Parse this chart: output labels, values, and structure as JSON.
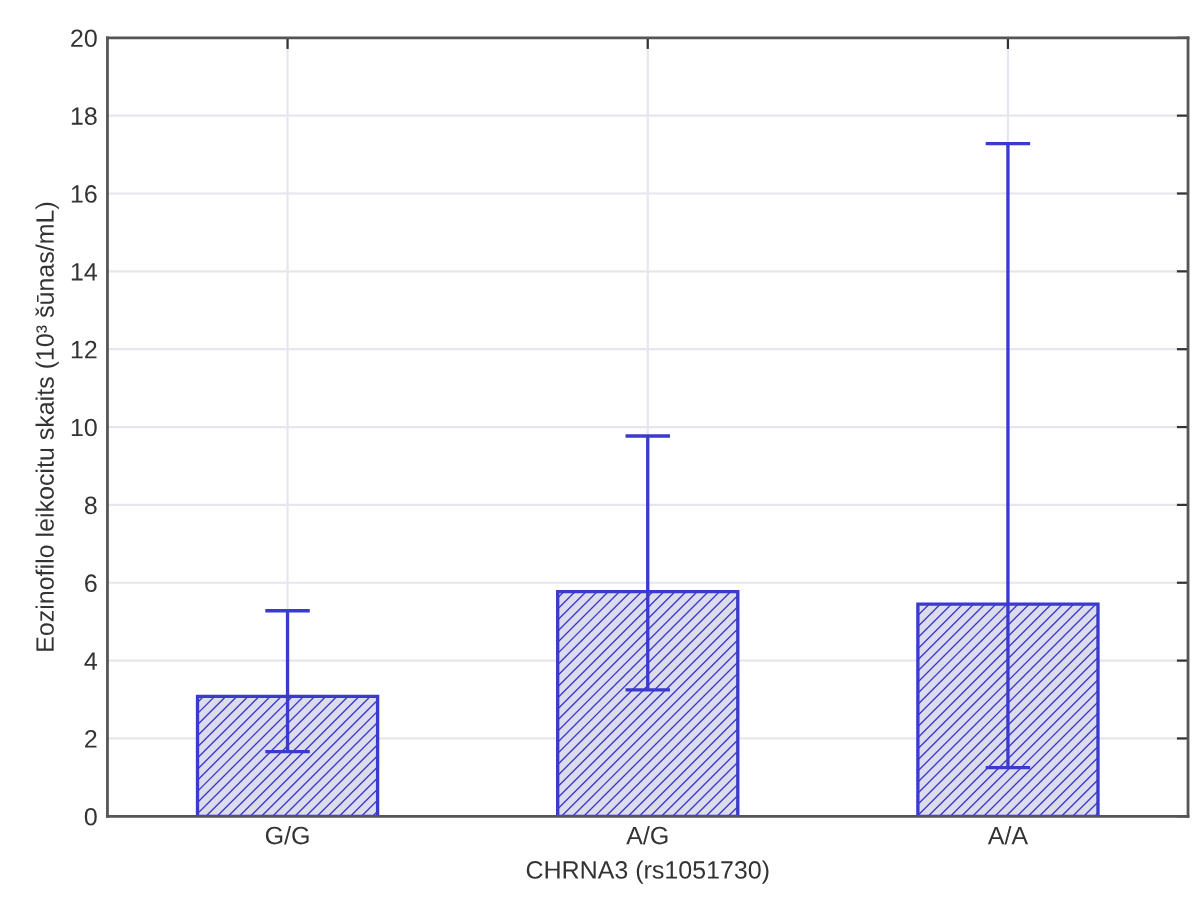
{
  "chart_data": {
    "type": "bar",
    "xlabel": "CHRNA3 (rs1051730)",
    "ylabel": "Eozinofilo leikocitu skaits (10³ šūnas/mL)",
    "categories": [
      "G/G",
      "A/G",
      "A/A"
    ],
    "values": [
      3.08,
      5.77,
      5.45
    ],
    "errors": [
      [
        1.66,
        5.28
      ],
      [
        3.25,
        9.77
      ],
      [
        1.25,
        17.28
      ]
    ],
    "color": "#3a3acc",
    "ylim": [
      0,
      20
    ],
    "yticks": [
      0,
      2,
      4,
      6,
      8,
      10,
      12,
      14,
      16,
      18,
      20
    ],
    "grid": true
  }
}
